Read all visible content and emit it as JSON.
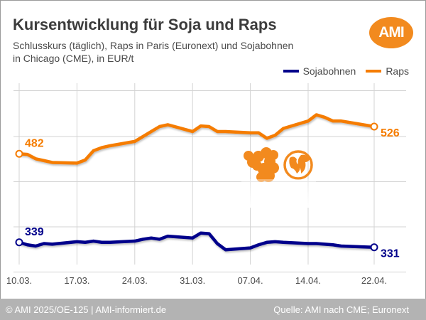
{
  "header": {
    "title": "Kursentwicklung für Soja und Raps",
    "subtitle_line1": "Schlusskurs (täglich), Raps in Paris (Euronext) und Sojabohnen",
    "subtitle_line2": "in Chicago (CME), in EUR/t",
    "logo_text": "AMI"
  },
  "footer": {
    "left": "© AMI 2025/OE-125 | AMI-informiert.de",
    "right": "Quelle: AMI nach CME; Euronext"
  },
  "colors": {
    "soja": "#00008b",
    "raps": "#f57c00",
    "grid": "#d3d3d3",
    "footer_bg": "#b3b3b3",
    "logo": "#f28a1e"
  },
  "icons": {
    "decoration_left": "flower-icon",
    "decoration_right": "globe-icon"
  },
  "chart_data": {
    "type": "line",
    "title": "Kursentwicklung für Soja und Raps",
    "subtitle": "Schlusskurs (täglich), Raps in Paris (Euronext) und Sojabohnen in Chicago (CME), in EUR/t",
    "xlabel": "",
    "ylabel": "EUR/t",
    "x_ticks": [
      "10.03.",
      "17.03.",
      "24.03.",
      "31.03.",
      "07.04.",
      "14.04.",
      "22.04."
    ],
    "x": [
      "10.03.",
      "11.03.",
      "12.03.",
      "13.03.",
      "14.03.",
      "17.03.",
      "18.03.",
      "19.03.",
      "20.03.",
      "21.03.",
      "24.03.",
      "25.03.",
      "26.03.",
      "27.03.",
      "28.03.",
      "31.03.",
      "01.04.",
      "02.04.",
      "03.04.",
      "04.04.",
      "07.04.",
      "08.04.",
      "09.04.",
      "10.04.",
      "11.04.",
      "14.04.",
      "15.04.",
      "16.04.",
      "17.04.",
      "18.04.",
      "22.04."
    ],
    "ylim": [
      248,
      611
    ],
    "grid_values": [
      291,
      364,
      437,
      510,
      584
    ],
    "y_tick_labels_shown": false,
    "grid": true,
    "legend": [
      "Sojabohnen",
      "Raps"
    ],
    "legend_position": "top-right",
    "series": [
      {
        "name": "Sojabohnen",
        "color": "#00008b",
        "start_label": "339",
        "end_label": "331",
        "values": [
          339,
          335,
          333,
          337,
          336,
          340,
          339,
          341,
          339,
          339,
          341,
          344,
          346,
          344,
          349,
          346,
          354,
          353,
          337,
          327,
          330,
          335,
          339,
          340,
          339,
          337,
          337,
          336,
          335,
          333,
          331
        ]
      },
      {
        "name": "Raps",
        "color": "#f57c00",
        "start_label": "482",
        "end_label": "526",
        "values": [
          482,
          481,
          474,
          471,
          468,
          467,
          472,
          487,
          492,
          495,
          502,
          510,
          518,
          526,
          529,
          518,
          527,
          526,
          518,
          518,
          516,
          516,
          507,
          512,
          523,
          535,
          545,
          541,
          535,
          535,
          526
        ]
      }
    ]
  }
}
